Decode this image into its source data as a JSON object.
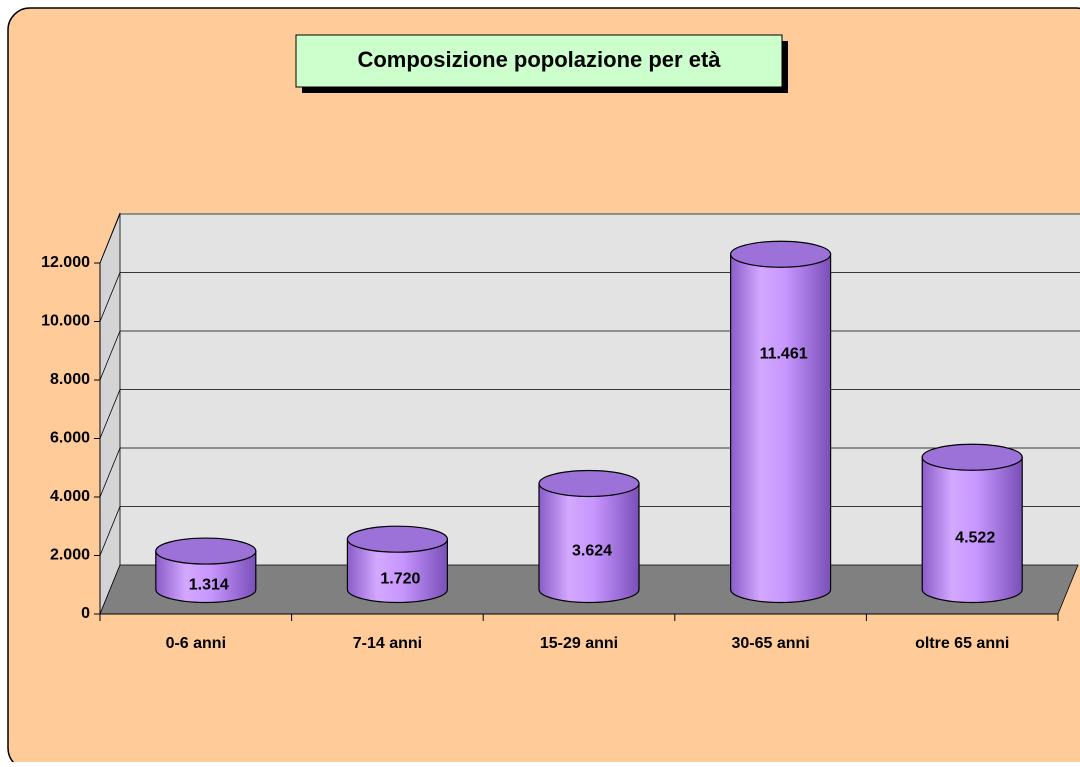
{
  "chart_data": {
    "type": "bar",
    "title": "Composizione popolazione per età",
    "categories": [
      "0-6 anni",
      "7-14 anni",
      "15-29 anni",
      "30-65 anni",
      "oltre 65 anni"
    ],
    "values": [
      1314,
      1720,
      3624,
      11461,
      4522
    ],
    "value_labels": [
      "1.314",
      "1.720",
      "3.624",
      "11.461",
      "4.522"
    ],
    "color": "#cc99ff",
    "ylim": [
      0,
      12000
    ],
    "yticks": [
      0,
      {
        "value": 2000,
        "label": "2.000"
      },
      {
        "value": 4000,
        "label": "4.000"
      },
      {
        "value": 6000,
        "label": "6.000"
      },
      {
        "value": 8000,
        "label": "8.000"
      },
      {
        "value": 10000,
        "label": "10.000"
      },
      {
        "value": 12000,
        "label": "12.000"
      }
    ],
    "grid": true
  }
}
